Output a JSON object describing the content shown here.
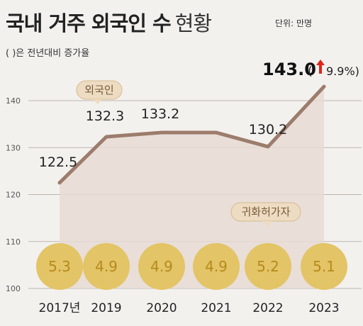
{
  "header": {
    "title_main": "국내 거주 외국인 수",
    "title_light": "현황",
    "unit": "단위: 만명",
    "subtitle": "( )은 전년대비 증가율"
  },
  "colors": {
    "background": "#f3f1ee",
    "line": "#9c7c6c",
    "area": "#e6dbd4",
    "grid": "#bdb6b0",
    "circle": "#e3c466",
    "circle_text": "#b58a1c",
    "badge_fill": "#eddcc2",
    "badge_text": "#7a5b3a",
    "badge_stroke": "#d8b98f",
    "up_arrow": "#e2231a",
    "x_text": "#222222"
  },
  "chart_data": {
    "type": "line",
    "categories": [
      "2017년",
      "2019",
      "2020",
      "2021",
      "2022",
      "2023"
    ],
    "series": [
      {
        "name": "외국인",
        "values": [
          122.5,
          132.3,
          133.2,
          133.2,
          130.2,
          143.0
        ],
        "labels": [
          "122.5",
          "132.3",
          "133.2",
          "",
          "130.2",
          "143.0"
        ]
      },
      {
        "name": "귀화허가자",
        "values": [
          5.3,
          4.9,
          4.9,
          4.9,
          5.2,
          5.1
        ],
        "labels": [
          "5.3",
          "4.9",
          "4.9",
          "4.9",
          "5.2",
          "5.1"
        ]
      }
    ],
    "highlight": {
      "value": "143.0",
      "change": "9.9%"
    },
    "yticks": [
      100,
      110,
      120,
      130,
      140
    ],
    "ytick_labels": [
      "100",
      "110",
      "120",
      "130",
      "140"
    ],
    "ylim": [
      100,
      145
    ],
    "badges": {
      "line": "외국인",
      "circles": "귀화허가자"
    },
    "grid": true
  }
}
